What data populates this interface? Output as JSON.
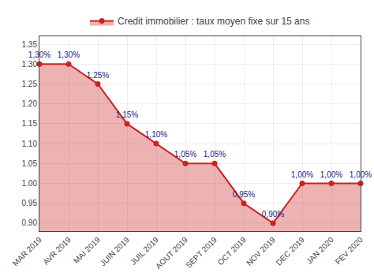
{
  "chart_data": {
    "type": "line",
    "categories": [
      "MAR 2019",
      "AVR 2019",
      "MAI 2019",
      "JUIN 2019",
      "JUIL 2019",
      "AOUT 2019",
      "SEPT 2019",
      "OCT 2019",
      "NOV 2019",
      "DEC 2019",
      "JAN 2020",
      "FEV 2020"
    ],
    "series": [
      {
        "name": "Credit immobilier : taux moyen fixe sur 15 ans",
        "color": "#cc2222",
        "values": [
          1.3,
          1.3,
          1.25,
          1.15,
          1.1,
          1.05,
          1.05,
          0.95,
          0.9,
          1.0,
          1.0,
          1.0
        ],
        "value_labels": [
          "1,30%",
          "1,30%",
          "1,25%",
          "1,15%",
          "1,10%",
          "1,05%",
          "1,05%",
          "0,95%",
          "0,90%",
          "1,00%",
          "1,00%",
          "1,00%"
        ]
      }
    ],
    "ylim": [
      0.88,
      1.37
    ],
    "yticks": [
      {
        "value": 0.9,
        "label": "0.90"
      },
      {
        "value": 0.95,
        "label": "0.95"
      },
      {
        "value": 1.0,
        "label": "1.00"
      },
      {
        "value": 1.05,
        "label": "1.05"
      },
      {
        "value": 1.1,
        "label": "1.10"
      },
      {
        "value": 1.15,
        "label": "1.15"
      },
      {
        "value": 1.2,
        "label": "1.20"
      },
      {
        "value": 1.25,
        "label": "1.25"
      },
      {
        "value": 1.3,
        "label": "1.30"
      },
      {
        "value": 1.35,
        "label": "1.35"
      }
    ],
    "grid": true,
    "legend": "top",
    "data_labels": true,
    "marker": "circle",
    "line_style": "solid"
  }
}
